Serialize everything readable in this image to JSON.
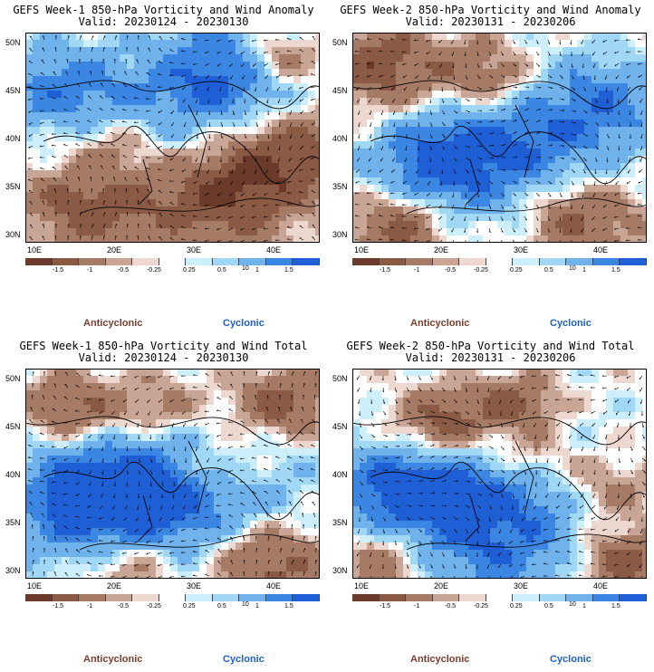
{
  "panels": [
    {
      "line1": "GEFS Week-1 850-hPa Vorticity and Wind Anomaly",
      "line2": "Valid: 20230124 - 20230130",
      "pattern": "anomaly1"
    },
    {
      "line1": "GEFS Week-2 850-hPa Vorticity and Wind Anomaly",
      "line2": "Valid: 20230131 - 20230206",
      "pattern": "anomaly2"
    },
    {
      "line1": "GEFS Week-1 850-hPa Vorticity and Wind Total",
      "line2": "Valid: 20230124 - 20230130",
      "pattern": "total1"
    },
    {
      "line1": "GEFS Week-2 850-hPa Vorticity and Wind Total",
      "line2": "Valid: 20230131 - 20230206",
      "pattern": "total2"
    }
  ],
  "lat_labels": [
    "50N",
    "45N",
    "40N",
    "35N",
    "30N"
  ],
  "lon_labels": [
    "10E",
    "20E",
    "30E",
    "40E"
  ],
  "colorbar": {
    "ticks": [
      "-1.5",
      "-1",
      "-0.5",
      "-0.25",
      "0.25",
      "0.5",
      "1",
      "1.5"
    ],
    "extra": "10",
    "colors": [
      "#6b3a2a",
      "#8b5a45",
      "#a67b66",
      "#c9a596",
      "#ecd8cf",
      "#ffffff",
      "#cdeffb",
      "#9fd7f5",
      "#6fb2ec",
      "#3c86e3",
      "#1f5fd6"
    ]
  },
  "legend": {
    "anticyclonic": "Anticyclonic",
    "cyclonic": "Cyclonic"
  }
}
